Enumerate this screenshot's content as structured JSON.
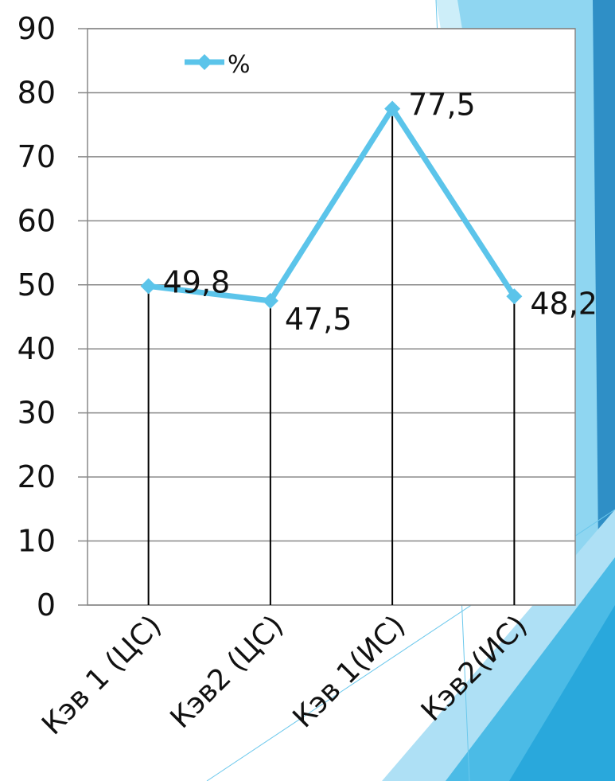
{
  "chart_data": {
    "type": "line",
    "categories": [
      "Кэв 1 (ЦС)",
      "Кэв2 (ЦС)",
      "Кэв 1(ИС)",
      "Кэв2(ИС)"
    ],
    "series": [
      {
        "name": "%",
        "values": [
          49.8,
          47.5,
          77.5,
          48.2
        ],
        "color": "#5bc4ea"
      }
    ],
    "data_labels": [
      "49,8",
      "47,5",
      "77,5",
      "48,2"
    ],
    "ylim": [
      0,
      90
    ],
    "yticks": [
      0,
      10,
      20,
      30,
      40,
      50,
      60,
      70,
      80,
      90
    ],
    "title": "",
    "xlabel": "",
    "ylabel": "",
    "grid": true,
    "drop_lines": true,
    "legend_position": "top-left"
  },
  "colors": {
    "series": "#5bc4ea",
    "gridline": "#888888",
    "background_accent_light": "#aee0f5",
    "background_accent_mid": "#6cc8ec",
    "background_accent_dark": "#2f8fc6"
  }
}
